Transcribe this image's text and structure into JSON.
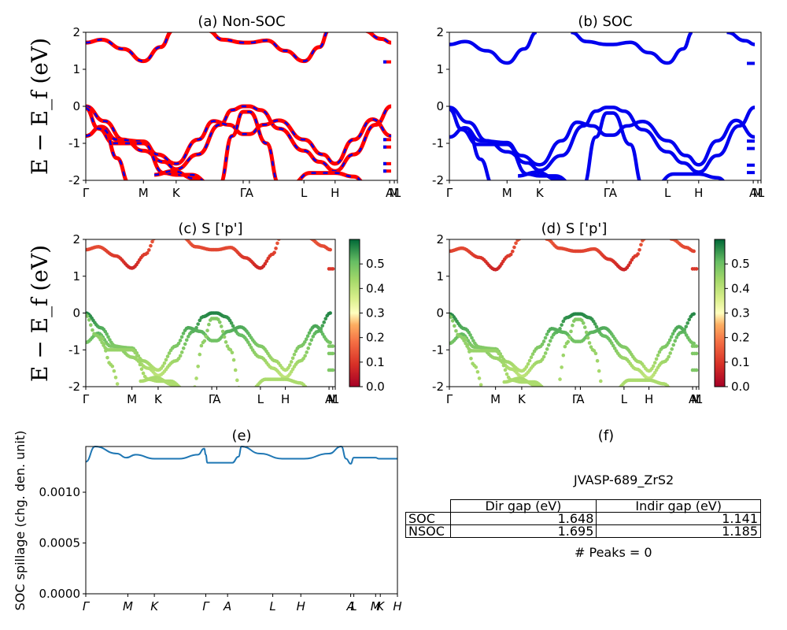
{
  "panels": {
    "a": {
      "title": "(a) Non-SOC"
    },
    "b": {
      "title": "(b) SOC"
    },
    "c": {
      "title": "(c)  S ['p']"
    },
    "d": {
      "title": "(d) S ['p']"
    },
    "e": {
      "title": "(e)"
    },
    "f": {
      "title": "(f)"
    }
  },
  "band_ylabel": "E − E_f (eV)",
  "spillage_ylabel": "SOC spillage (chg. den. unit)",
  "kpath_labels": [
    "Γ",
    "M",
    "K",
    "Γ",
    "A",
    "L",
    "H",
    "A",
    "M",
    "L",
    "H",
    "K"
  ],
  "kpath_labels_spillage": [
    "Γ",
    "M",
    "K",
    "Γ",
    "A",
    "L",
    "H",
    "A",
    "L",
    "M",
    "K",
    "H"
  ],
  "colorbar_ticks": [
    "0.0",
    "0.1",
    "0.2",
    "0.3",
    "0.4",
    "0.5"
  ],
  "colors": {
    "nsoc": "#ff0000",
    "soc": "#0000ee",
    "spillage": "#1f77b4"
  },
  "table": {
    "material": "JVASP-689_ZrS2",
    "header": [
      "",
      "Dir gap (eV)",
      "Indir gap (eV)"
    ],
    "rows": [
      {
        "label": "SOC",
        "dir_gap": "1.648",
        "indir_gap": "1.141"
      },
      {
        "label": "NSOC",
        "dir_gap": "1.695",
        "indir_gap": "1.185"
      }
    ],
    "peaks": "# Peaks = 0"
  },
  "chart_data": [
    {
      "type": "line",
      "title": "(a) Non-SOC",
      "ylabel": "E − E_f (eV)",
      "ylim": [
        -2,
        2
      ],
      "yticks": [
        -2,
        -1,
        0,
        1,
        2
      ],
      "xticklabels": [
        "Γ",
        "M",
        "K",
        "Γ",
        "A",
        "L",
        "H",
        "A",
        "M",
        "L",
        "H",
        "K"
      ],
      "series": [
        {
          "values": [
            1.7,
            1.8,
            1.5,
            1.2,
            1.6,
            2.0
          ]
        },
        {
          "values": [
            0.0,
            -0.4,
            -1.0,
            -1.5,
            -0.5,
            0.0,
            -0.4,
            -1.0,
            -1.7,
            -0.5,
            0.0
          ]
        }
      ]
    },
    {
      "type": "line",
      "title": "(b) SOC",
      "ylabel": "",
      "ylim": [
        -2,
        2
      ],
      "yticks": [
        -2,
        -1,
        0,
        1,
        2
      ],
      "xticklabels": [
        "Γ",
        "M",
        "K",
        "Γ",
        "A",
        "L",
        "H",
        "A",
        "M",
        "L",
        "H",
        "K"
      ],
      "series": [
        {
          "values": [
            1.65,
            1.75,
            1.45,
            1.15,
            1.55,
            2.0
          ]
        },
        {
          "values": [
            0.0,
            -0.4,
            -1.0,
            -1.55,
            -0.5,
            0.0,
            -0.4,
            -1.0,
            -1.75,
            -0.5,
            0.0
          ]
        }
      ]
    },
    {
      "type": "scatter",
      "title": "(c)  S ['p']",
      "ylabel": "E − E_f (eV)",
      "ylim": [
        -2,
        2
      ],
      "colorbar": {
        "min": 0.0,
        "max": 0.6,
        "ticks": [
          0.0,
          0.1,
          0.2,
          0.3,
          0.4,
          0.5
        ],
        "cmap": "RdYlGn"
      },
      "xticklabels": [
        "Γ",
        "M",
        "K",
        "Γ",
        "A",
        "L",
        "H",
        "A",
        "M",
        "L",
        "H",
        "K"
      ]
    },
    {
      "type": "scatter",
      "title": "(d) S ['p']",
      "ylabel": "",
      "ylim": [
        -2,
        2
      ],
      "colorbar": {
        "min": 0.0,
        "max": 0.6,
        "ticks": [
          0.0,
          0.1,
          0.2,
          0.3,
          0.4,
          0.5
        ],
        "cmap": "RdYlGn"
      },
      "xticklabels": [
        "Γ",
        "M",
        "K",
        "Γ",
        "A",
        "L",
        "H",
        "A",
        "M",
        "L",
        "H",
        "K"
      ]
    },
    {
      "type": "line",
      "title": "(e)",
      "ylabel": "SOC spillage (chg. den. unit)",
      "ylim": [
        0,
        0.00145
      ],
      "yticks": [
        "0.0000",
        "0.0005",
        "0.0010"
      ],
      "xticklabels": [
        "Γ",
        "M",
        "K",
        "Γ",
        "A",
        "L",
        "H",
        "A",
        "L",
        "M",
        "K",
        "H"
      ],
      "values": [
        0.0013,
        0.00145,
        0.00138,
        0.00133,
        0.00137,
        0.00132,
        0.00132,
        0.00135,
        0.00145,
        0.00129,
        0.00129,
        0.00129,
        0.00145,
        0.00138,
        0.00133,
        0.00132,
        0.00134,
        0.00145,
        0.00128,
        0.00134,
        0.00134,
        0.00133,
        0.00133
      ]
    }
  ]
}
